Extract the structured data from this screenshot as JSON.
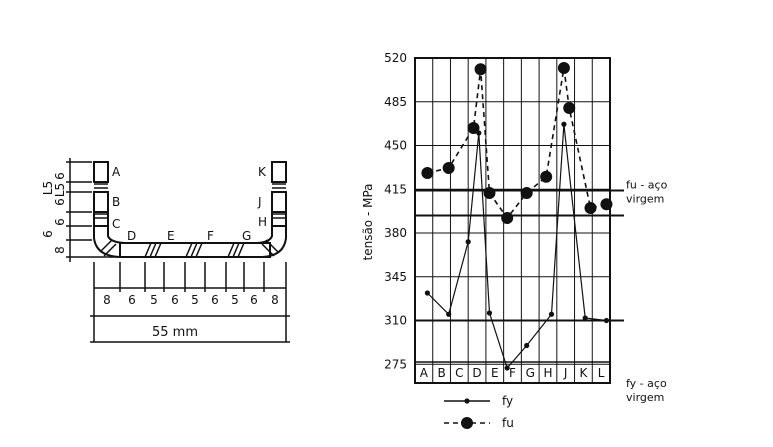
{
  "section": {
    "segments": [
      "8",
      "6",
      "5",
      "6",
      "5",
      "6",
      "5",
      "6",
      "8"
    ],
    "total_width": "55 mm",
    "left_flange_dims": [
      "6",
      "L5",
      "L5",
      "6",
      "6",
      "6",
      "8",
      "8"
    ],
    "region_labels": [
      "A",
      "B",
      "C",
      "D",
      "E",
      "F",
      "G",
      "H",
      "J",
      "K"
    ]
  },
  "chart_data": {
    "type": "line",
    "ylabel": "tensão - MPa",
    "categories": [
      "A",
      "B",
      "C",
      "D",
      "E",
      "F",
      "G",
      "H",
      "J",
      "K",
      "L"
    ],
    "ylim": [
      260,
      520
    ],
    "yticks": [
      275,
      310,
      345,
      380,
      415,
      450,
      485,
      520
    ],
    "grid": true,
    "series": [
      {
        "name": "fy",
        "style": "solid line, small dots",
        "points": [
          {
            "x": 0.7,
            "y": 332
          },
          {
            "x": 1.9,
            "y": 315
          },
          {
            "x": 3.0,
            "y": 373
          },
          {
            "x": 3.6,
            "y": 460
          },
          {
            "x": 4.2,
            "y": 316
          },
          {
            "x": 5.2,
            "y": 272
          },
          {
            "x": 6.3,
            "y": 290
          },
          {
            "x": 7.7,
            "y": 315
          },
          {
            "x": 8.4,
            "y": 467
          },
          {
            "x": 9.6,
            "y": 312
          },
          {
            "x": 10.8,
            "y": 310
          }
        ]
      },
      {
        "name": "fu",
        "style": "dashed line, large dots",
        "points": [
          {
            "x": 0.7,
            "y": 428
          },
          {
            "x": 1.9,
            "y": 432
          },
          {
            "x": 3.3,
            "y": 464
          },
          {
            "x": 3.7,
            "y": 511
          },
          {
            "x": 4.2,
            "y": 412
          },
          {
            "x": 5.2,
            "y": 392
          },
          {
            "x": 6.3,
            "y": 412
          },
          {
            "x": 7.4,
            "y": 425
          },
          {
            "x": 8.4,
            "y": 512
          },
          {
            "x": 8.7,
            "y": 480
          },
          {
            "x": 9.9,
            "y": 400
          },
          {
            "x": 10.8,
            "y": 403
          }
        ]
      }
    ],
    "reference_lines": [
      {
        "y": 414,
        "label_main": "fu - aço",
        "label_sub": "virgem"
      },
      {
        "y": 310,
        "label_main": "fy - aço",
        "label_sub": "virgem"
      }
    ],
    "secondary_line": {
      "y": 394
    },
    "legend": [
      {
        "series": "fy",
        "label": "fy"
      },
      {
        "series": "fu",
        "label": "fu"
      }
    ]
  }
}
